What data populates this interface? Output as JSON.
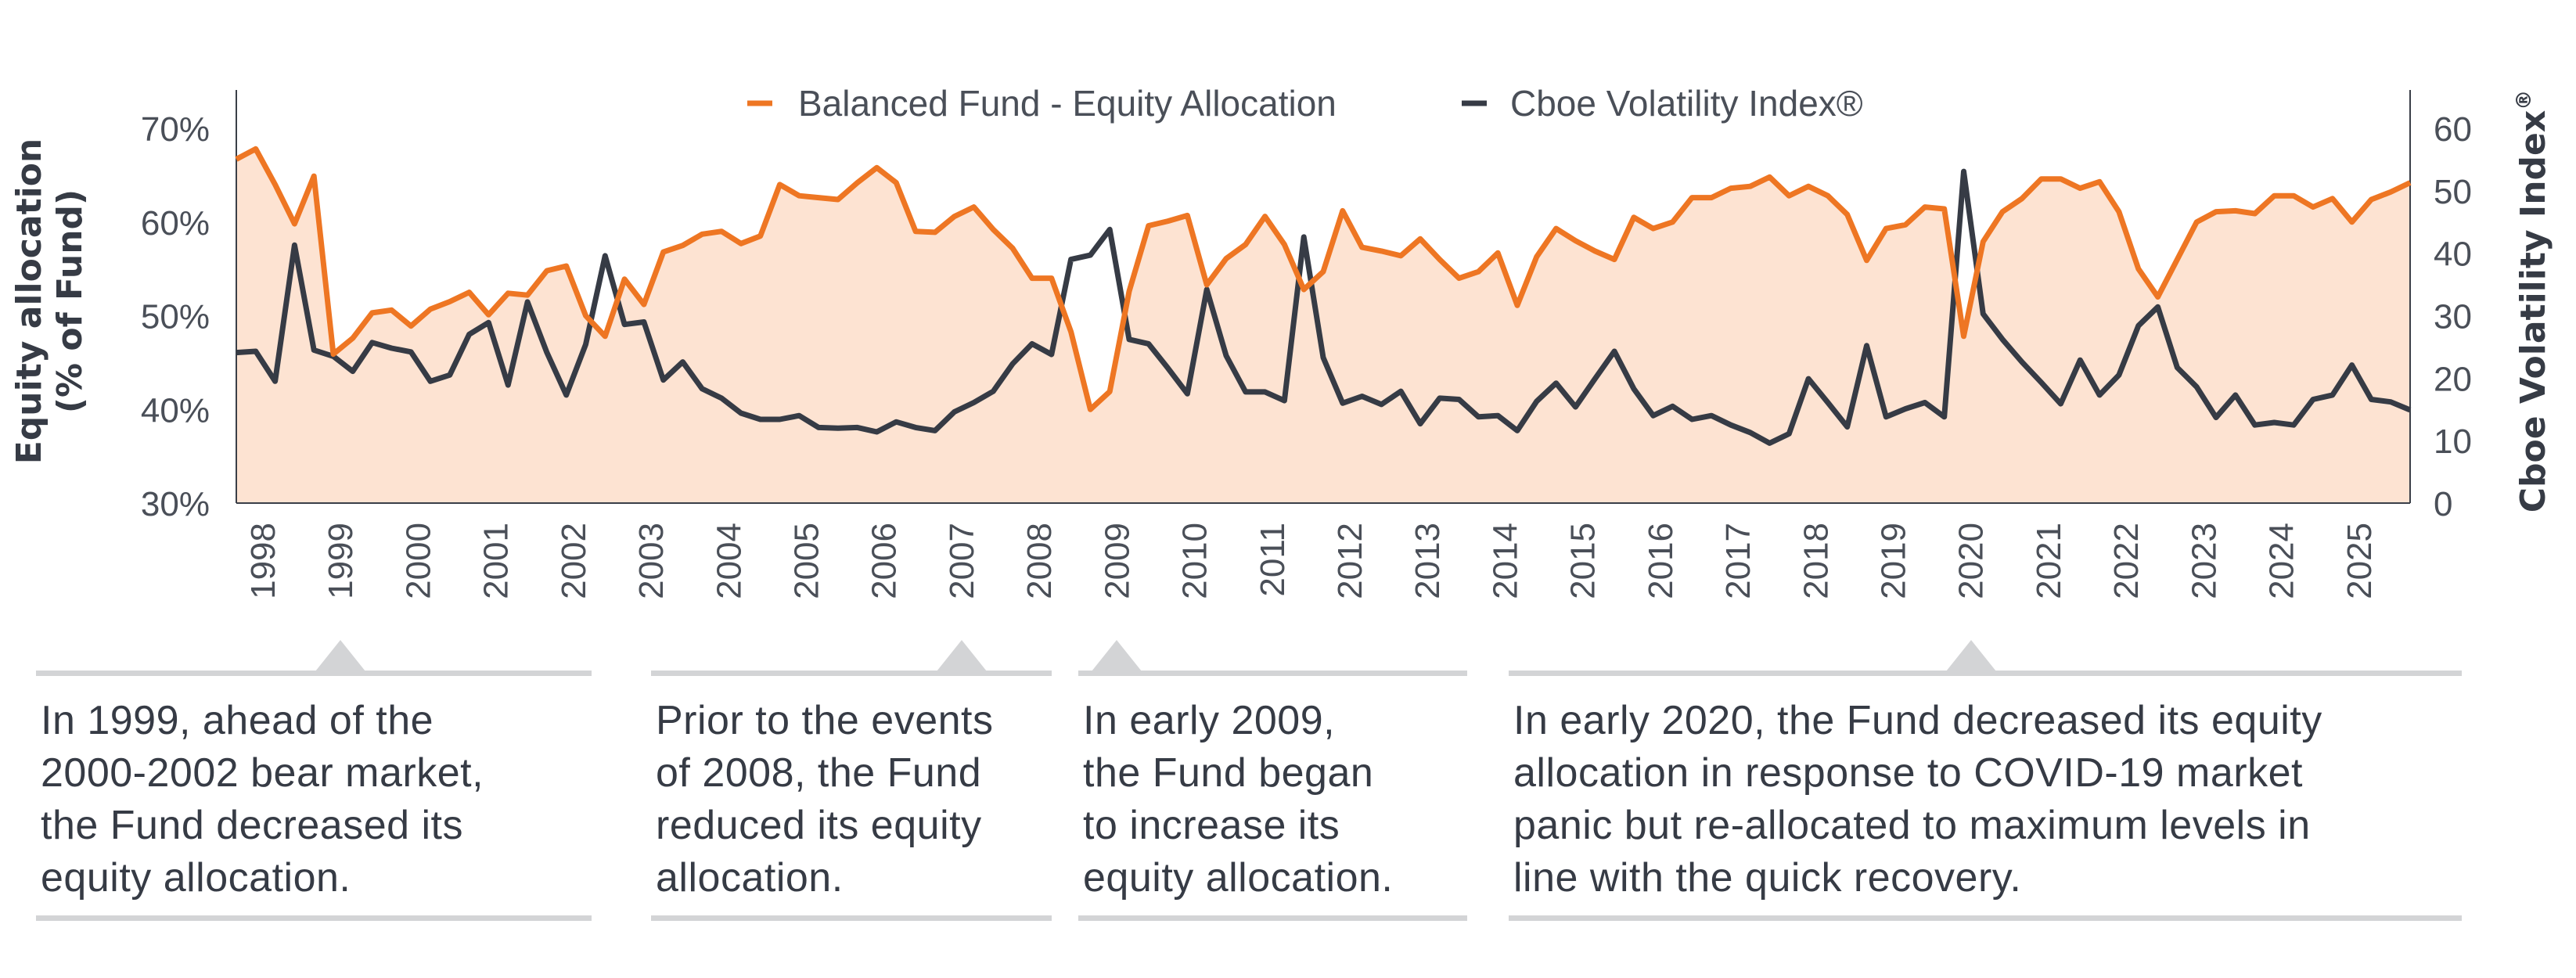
{
  "chart_data": {
    "type": "line",
    "title": "",
    "legend": {
      "placement": "top-center",
      "entries": [
        "Balanced Fund - Equity Allocation",
        "Cboe Volatility Index®"
      ]
    },
    "y_left": {
      "label_lines": [
        "Equity allocation",
        "(% of Fund)"
      ],
      "range": [
        30,
        70
      ],
      "ticks": [
        "30%",
        "40%",
        "50%",
        "60%",
        "70%"
      ],
      "tick_values": [
        30,
        40,
        50,
        60,
        70
      ]
    },
    "y_right": {
      "label": "Cboe Volatility Index",
      "label_mark": "®",
      "range": [
        0,
        60
      ],
      "ticks": [
        "0",
        "10",
        "20",
        "30",
        "40",
        "50",
        "60"
      ],
      "tick_values": [
        0,
        10,
        20,
        30,
        40,
        50,
        60
      ]
    },
    "x_ticks": [
      "1998",
      "1999",
      "2000",
      "2001",
      "2002",
      "2003",
      "2004",
      "2005",
      "2006",
      "2007",
      "2008",
      "2009",
      "2010",
      "2011",
      "2012",
      "2013",
      "2014",
      "2015",
      "2016",
      "2017",
      "2018",
      "2019",
      "2020",
      "2021",
      "2022",
      "2023",
      "2024",
      "2025"
    ],
    "grid": false,
    "colors": {
      "equity": "#ee7623",
      "equity_fill": "#fde3d2",
      "vix": "#363b45",
      "axis": "#3a3f48",
      "annotation_rule": "#d3d4d6"
    },
    "x": [
      "1997-09",
      "1997-12",
      "1998-03",
      "1998-06",
      "1998-09",
      "1998-12",
      "1999-03",
      "1999-06",
      "1999-09",
      "1999-12",
      "2000-03",
      "2000-06",
      "2000-09",
      "2000-12",
      "2001-03",
      "2001-06",
      "2001-09",
      "2001-12",
      "2002-03",
      "2002-06",
      "2002-09",
      "2002-12",
      "2003-03",
      "2003-06",
      "2003-09",
      "2003-12",
      "2004-03",
      "2004-06",
      "2004-09",
      "2004-12",
      "2005-03",
      "2005-06",
      "2005-09",
      "2005-12",
      "2006-03",
      "2006-06",
      "2006-09",
      "2006-12",
      "2007-03",
      "2007-06",
      "2007-09",
      "2007-12",
      "2008-03",
      "2008-06",
      "2008-09",
      "2008-12",
      "2009-03",
      "2009-06",
      "2009-09",
      "2009-12",
      "2010-03",
      "2010-06",
      "2010-09",
      "2010-12",
      "2011-03",
      "2011-06",
      "2011-09",
      "2011-12",
      "2012-03",
      "2012-06",
      "2012-09",
      "2012-12",
      "2013-03",
      "2013-06",
      "2013-09",
      "2013-12",
      "2014-03",
      "2014-06",
      "2014-09",
      "2014-12",
      "2015-03",
      "2015-06",
      "2015-09",
      "2015-12",
      "2016-03",
      "2016-06",
      "2016-09",
      "2016-12",
      "2017-03",
      "2017-06",
      "2017-09",
      "2017-12",
      "2018-03",
      "2018-06",
      "2018-09",
      "2018-12",
      "2019-03",
      "2019-06",
      "2019-09",
      "2019-12",
      "2020-03",
      "2020-06",
      "2020-09",
      "2020-12",
      "2021-03",
      "2021-06",
      "2021-09",
      "2021-12",
      "2022-03",
      "2022-06",
      "2022-09",
      "2022-12",
      "2023-03",
      "2023-06",
      "2023-09",
      "2023-12",
      "2024-03",
      "2024-06",
      "2024-09",
      "2024-12",
      "2025-03",
      "2025-06",
      "2025-09"
    ],
    "series": [
      {
        "name": "Balanced Fund - Equity Allocation",
        "axis": "left",
        "unit": "%",
        "values": [
          66.7,
          67.8,
          64.0,
          59.8,
          64.9,
          45.9,
          47.6,
          50.3,
          50.6,
          48.9,
          50.7,
          51.5,
          52.5,
          50.1,
          52.4,
          52.2,
          54.8,
          55.3,
          50.0,
          47.8,
          53.9,
          51.2,
          56.8,
          57.5,
          58.7,
          59.0,
          57.7,
          58.5,
          64.0,
          62.8,
          62.6,
          62.4,
          64.2,
          65.8,
          64.2,
          59.0,
          58.9,
          60.6,
          61.6,
          59.2,
          57.2,
          54.0,
          54.0,
          48.3,
          40.0,
          41.9,
          52.6,
          59.6,
          60.1,
          60.7,
          53.3,
          56.1,
          57.6,
          60.6,
          57.6,
          52.8,
          54.7,
          61.2,
          57.3,
          56.9,
          56.4,
          58.2,
          56.0,
          54.0,
          54.7,
          56.7,
          51.1,
          56.3,
          59.3,
          58.0,
          56.9,
          56.0,
          60.5,
          59.3,
          60.0,
          62.6,
          62.6,
          63.6,
          63.8,
          64.8,
          62.8,
          63.8,
          62.8,
          60.8,
          55.9,
          59.3,
          59.7,
          61.6,
          61.4,
          47.8,
          57.9,
          61.1,
          62.5,
          64.6,
          64.6,
          63.6,
          64.3,
          61.1,
          55.0,
          52.0,
          56.0,
          60.0,
          61.1,
          61.2,
          60.9,
          62.8,
          62.8,
          61.6,
          62.5,
          60.0,
          62.4,
          63.2,
          64.2
        ]
      },
      {
        "name": "Cboe Volatility Index®",
        "axis": "right",
        "values": [
          24.1,
          24.3,
          19.5,
          41.3,
          24.5,
          23.5,
          21.1,
          25.7,
          24.8,
          24.2,
          19.5,
          20.5,
          27.0,
          28.9,
          18.9,
          32.2,
          24.1,
          17.3,
          25.4,
          39.6,
          28.6,
          29.0,
          19.7,
          22.6,
          18.3,
          16.8,
          14.4,
          13.4,
          13.4,
          14.0,
          12.1,
          12.0,
          12.1,
          11.4,
          13.0,
          12.1,
          11.6,
          14.6,
          16.1,
          17.9,
          22.3,
          25.5,
          23.8,
          39.0,
          39.7,
          43.8,
          26.2,
          25.5,
          21.6,
          17.5,
          34.2,
          23.6,
          17.8,
          17.8,
          16.4,
          42.6,
          23.3,
          16.0,
          17.1,
          15.8,
          17.9,
          12.7,
          16.8,
          16.6,
          13.8,
          14.0,
          11.6,
          16.3,
          19.2,
          15.4,
          19.9,
          24.3,
          18.3,
          14.0,
          15.5,
          13.4,
          14.0,
          12.5,
          11.3,
          9.6,
          11.1,
          19.9,
          16.1,
          12.2,
          25.2,
          13.8,
          15.1,
          16.1,
          13.8,
          53.1,
          30.3,
          26.2,
          22.6,
          19.3,
          15.9,
          22.9,
          17.3,
          20.5,
          28.4,
          31.4,
          21.7,
          18.6,
          13.7,
          17.3,
          12.5,
          12.9,
          12.5,
          16.6,
          17.3,
          22.1,
          16.6,
          16.2,
          14.9
        ]
      }
    ],
    "annotations": [
      {
        "marker_year": "1999",
        "lines": [
          "In 1999, ahead of the",
          "2000-2002 bear market,",
          "the Fund decreased its",
          "equity allocation."
        ]
      },
      {
        "marker_year": "2007",
        "lines": [
          "Prior to the events",
          "of 2008, the Fund",
          "reduced its equity",
          "allocation."
        ]
      },
      {
        "marker_year": "2009",
        "lines": [
          "In early 2009,",
          "the Fund began",
          "to increase its",
          "equity allocation."
        ]
      },
      {
        "marker_year": "2020",
        "lines": [
          "In early 2020, the Fund decreased its equity",
          "allocation in response to COVID-19 market",
          "panic but re-allocated to maximum levels in",
          "line with the quick recovery."
        ]
      }
    ]
  }
}
